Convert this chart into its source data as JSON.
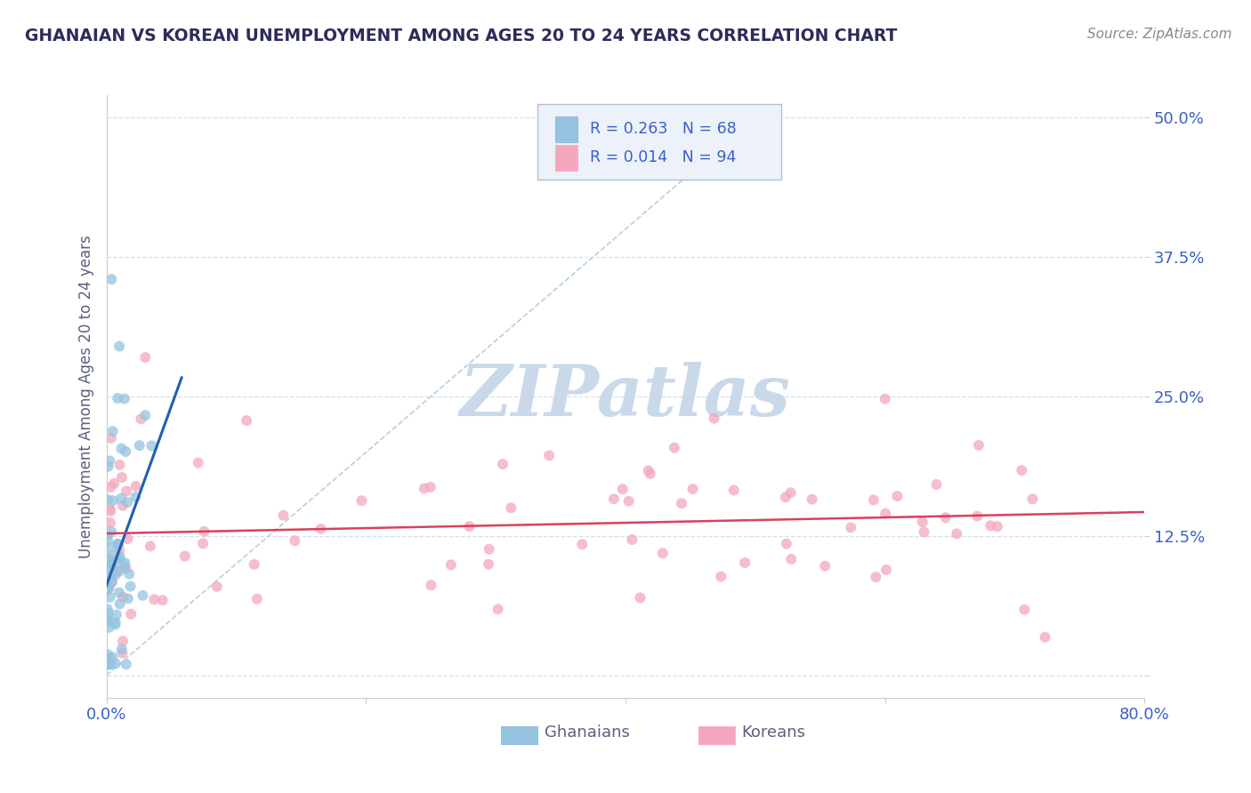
{
  "title": "GHANAIAN VS KOREAN UNEMPLOYMENT AMONG AGES 20 TO 24 YEARS CORRELATION CHART",
  "source": "Source: ZipAtlas.com",
  "ylabel": "Unemployment Among Ages 20 to 24 years",
  "xlim": [
    0.0,
    0.8
  ],
  "ylim": [
    -0.02,
    0.52
  ],
  "xticks": [
    0.0,
    0.2,
    0.4,
    0.6,
    0.8
  ],
  "yticks": [
    0.0,
    0.125,
    0.25,
    0.375,
    0.5
  ],
  "ghanaian_R": 0.263,
  "ghanaian_N": 68,
  "korean_R": 0.014,
  "korean_N": 94,
  "ghanaian_color": "#94c4e0",
  "korean_color": "#f4a7bc",
  "ghanaian_line_color": "#2060b0",
  "korean_line_color": "#d94060",
  "diagonal_line_color": "#b8cfe0",
  "background_color": "#ffffff",
  "grid_color": "#d5dff0",
  "title_color": "#2c2c5a",
  "axis_label_color": "#5a6080",
  "tick_color": "#3a5fc8",
  "legend_facecolor": "#edf2fa",
  "legend_edgecolor": "#b0c0d8",
  "watermark_color": "#c5d5e8",
  "source_color": "#888888"
}
